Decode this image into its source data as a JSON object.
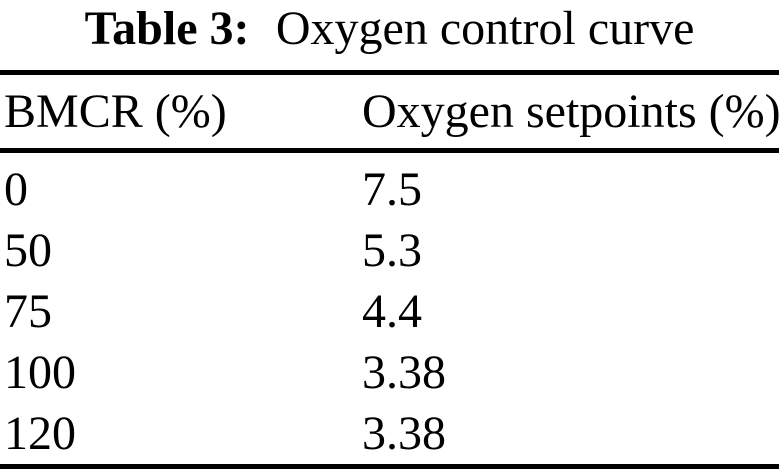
{
  "caption": {
    "label": "Table 3:",
    "title": "Oxygen control curve"
  },
  "chart_data": {
    "type": "table",
    "title": "Table 3: Oxygen control curve",
    "columns": [
      "BMCR (%)",
      "Oxygen setpoints (%)"
    ],
    "rows": [
      [
        "0",
        "7.5"
      ],
      [
        "50",
        "5.3"
      ],
      [
        "75",
        "4.4"
      ],
      [
        "100",
        "3.38"
      ],
      [
        "120",
        "3.38"
      ]
    ]
  },
  "colors": {
    "text": "#000000",
    "background": "#ffffff",
    "rule": "#000000"
  }
}
